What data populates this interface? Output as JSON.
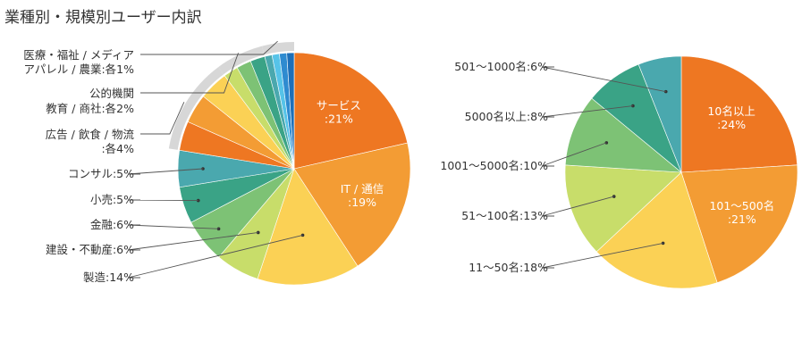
{
  "chart_data": [
    {
      "type": "pie",
      "title": "業種別・規模別ユーザー内訳",
      "slices": [
        {
          "label": "サービス",
          "value": 21,
          "display": "サービス:21%",
          "color": "#EE7722"
        },
        {
          "label": "IT / 通信",
          "value": 19,
          "display": "IT / 通信:19%",
          "color": "#F39C34"
        },
        {
          "label": "製造",
          "value": 14,
          "display": "製造:14%",
          "color": "#FBD155"
        },
        {
          "label": "建設・不動産",
          "value": 6,
          "display": "建設・不動産:6%",
          "color": "#C8DD6A"
        },
        {
          "label": "金融",
          "value": 6,
          "display": "金融:6%",
          "color": "#7DC275"
        },
        {
          "label": "小売",
          "value": 5,
          "display": "小売:5%",
          "color": "#3AA386"
        },
        {
          "label": "コンサル",
          "value": 5,
          "display": "コンサル:5%",
          "color": "#4AA8AE"
        },
        {
          "label": "広告",
          "value": 4,
          "display": "",
          "color": "#EE7722"
        },
        {
          "label": "飲食",
          "value": 4,
          "display": "",
          "color": "#F39C34"
        },
        {
          "label": "物流",
          "value": 4,
          "display": "",
          "color": "#FBD155"
        },
        {
          "label": "教育",
          "value": 2,
          "display": "",
          "color": "#C8DD6A"
        },
        {
          "label": "商社",
          "value": 2,
          "display": "",
          "color": "#7DC275"
        },
        {
          "label": "公的機関",
          "value": 2,
          "display": "",
          "color": "#3AA386"
        },
        {
          "label": "医療・福祉",
          "value": 1,
          "display": "",
          "color": "#4AA8AE"
        },
        {
          "label": "アパレル",
          "value": 1,
          "display": "",
          "color": "#56C3E8"
        },
        {
          "label": "農業",
          "value": 1,
          "display": "",
          "color": "#2E8BD0"
        },
        {
          "label": "メディア",
          "value": 1,
          "display": "",
          "color": "#1D6FB8"
        }
      ],
      "group_labels": [
        {
          "lines": [
            "医療・福祉 / メディア",
            "アパレル / 農業:各1%"
          ]
        },
        {
          "lines": [
            "公的機関",
            "教育 / 商社:各2%"
          ]
        },
        {
          "lines": [
            "広告 / 飲食 / 物流",
            ":各4%"
          ]
        }
      ]
    },
    {
      "type": "pie",
      "slices": [
        {
          "label": "10名以上",
          "value": 24,
          "display": "10名以上:24%",
          "color": "#EE7722"
        },
        {
          "label": "101〜500名",
          "value": 21,
          "display": "101〜500名:21%",
          "color": "#F39C34"
        },
        {
          "label": "11〜50名",
          "value": 18,
          "display": "11〜50名:18%",
          "color": "#FBD155"
        },
        {
          "label": "51〜100名",
          "value": 13,
          "display": "51〜100名:13%",
          "color": "#C8DD6A"
        },
        {
          "label": "1001〜5000名",
          "value": 10,
          "display": "1001〜5000名:10%",
          "color": "#7DC275"
        },
        {
          "label": "5000名以上",
          "value": 8,
          "display": "5000名以上:8%",
          "color": "#3AA386"
        },
        {
          "label": "501〜1000名",
          "value": 6,
          "display": "501〜1000名:6%",
          "color": "#4AA8AE"
        }
      ]
    }
  ]
}
